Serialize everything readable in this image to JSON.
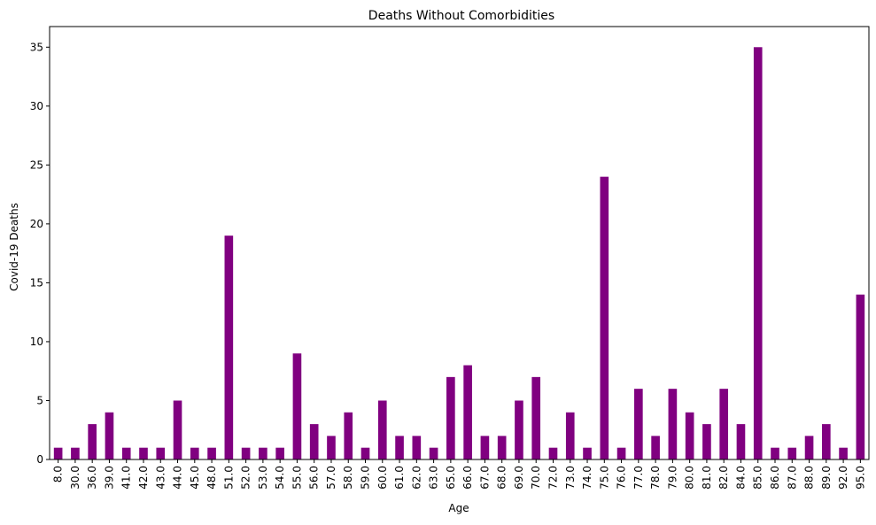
{
  "chart_data": {
    "type": "bar",
    "title": "Deaths Without Comorbidities",
    "xlabel": "Age",
    "ylabel": "Covid-19 Deaths",
    "ylim": [
      0,
      36.75
    ],
    "yticks": [
      0,
      5,
      10,
      15,
      20,
      25,
      30,
      35
    ],
    "grid": false,
    "legend": "none",
    "bar_color": "#800080",
    "categories": [
      "8.0",
      "30.0",
      "36.0",
      "39.0",
      "41.0",
      "42.0",
      "43.0",
      "44.0",
      "45.0",
      "48.0",
      "51.0",
      "52.0",
      "53.0",
      "54.0",
      "55.0",
      "56.0",
      "57.0",
      "58.0",
      "59.0",
      "60.0",
      "61.0",
      "62.0",
      "63.0",
      "65.0",
      "66.0",
      "67.0",
      "68.0",
      "69.0",
      "70.0",
      "72.0",
      "73.0",
      "74.0",
      "75.0",
      "76.0",
      "77.0",
      "78.0",
      "79.0",
      "80.0",
      "81.0",
      "82.0",
      "84.0",
      "85.0",
      "86.0",
      "87.0",
      "88.0",
      "89.0",
      "92.0",
      "95.0"
    ],
    "values": [
      1,
      1,
      3,
      4,
      1,
      1,
      1,
      5,
      1,
      1,
      19,
      1,
      1,
      1,
      9,
      3,
      2,
      4,
      1,
      5,
      2,
      2,
      1,
      7,
      8,
      2,
      2,
      5,
      7,
      1,
      4,
      1,
      24,
      1,
      6,
      2,
      6,
      4,
      3,
      6,
      3,
      35,
      1,
      1,
      2,
      3,
      1,
      14
    ]
  }
}
